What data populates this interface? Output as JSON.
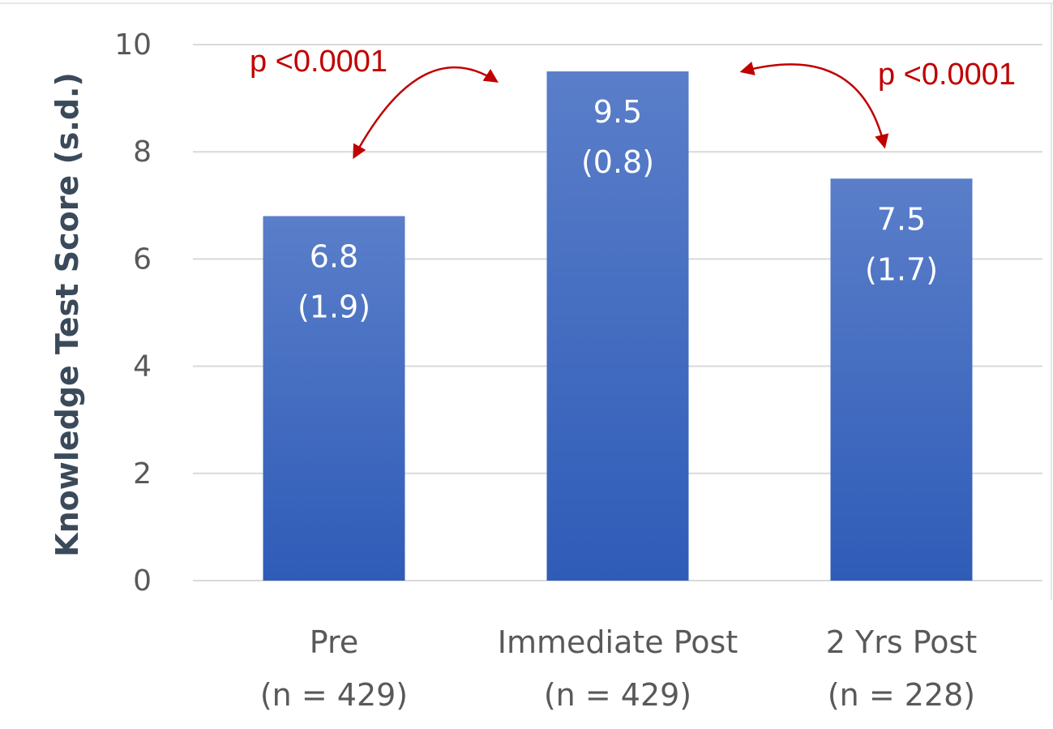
{
  "chart_data": {
    "type": "bar",
    "ylabel": "Knowledge Test  Score (s.d.)",
    "ylim": [
      0,
      10
    ],
    "yticks": [
      "0",
      "2",
      "4",
      "6",
      "8",
      "10"
    ],
    "grid": true,
    "categories": [
      {
        "name": "Pre",
        "n_label": "(n = 429)"
      },
      {
        "name": "Immediate Post",
        "n_label": "(n = 429)"
      },
      {
        "name": "2 Yrs Post",
        "n_label": "(n = 228)"
      }
    ],
    "values": [
      6.8,
      9.5,
      7.5
    ],
    "sd": [
      1.9,
      0.8,
      1.7
    ],
    "value_labels": [
      "6.8",
      "9.5",
      "7.5"
    ],
    "sd_labels": [
      "(1.9)",
      "(0.8)",
      "(1.7)"
    ],
    "annotations": [
      {
        "text": "p <0.0001",
        "from": "Pre",
        "to": "Immediate Post"
      },
      {
        "text": "p <0.0001",
        "from": "Immediate Post",
        "to": "2 Yrs Post"
      }
    ],
    "colors": {
      "bar_top": "#5a7ec9",
      "bar_bottom": "#2f5cb8",
      "annotation": "#c00000",
      "axis_text": "#595959",
      "ylabel_text": "#3b4a5a",
      "grid": "#d9d9d9"
    }
  }
}
